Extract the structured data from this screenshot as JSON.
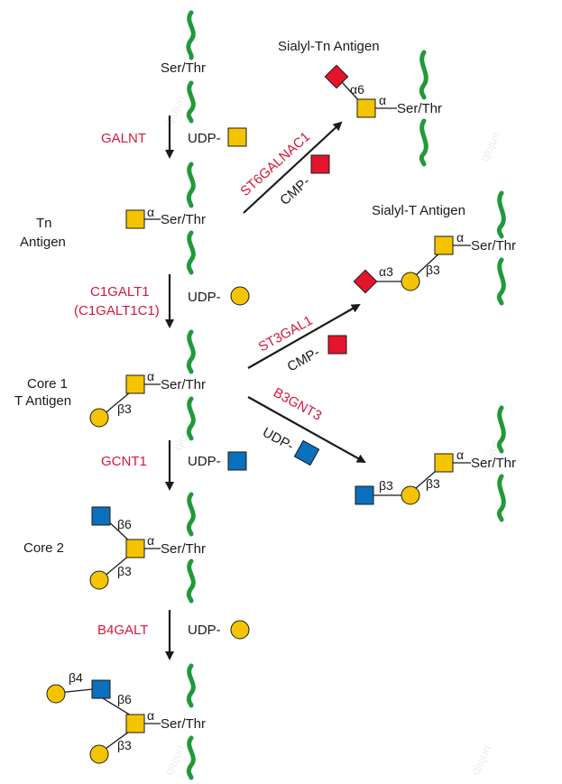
{
  "labels": {
    "ser_thr": "Ser/Thr",
    "udp": "UDP-",
    "cmp": "CMP-",
    "alpha": "α",
    "alpha6": "α6",
    "alpha3": "α3",
    "beta3": "β3",
    "beta4": "β4",
    "beta6": "β6"
  },
  "structures": {
    "tn_antigen": "Tn\nAntigen",
    "tn_line1": "Tn",
    "tn_line2": "Antigen",
    "core1_line1": "Core 1",
    "core1_line2": "T Antigen",
    "core2": "Core 2",
    "sialyl_tn": "Sialyl-Tn Antigen",
    "sialyl_t": "Sialyl-T Antigen"
  },
  "enzymes": {
    "galnt": "GALNT",
    "c1galt1": "C1GALT1",
    "c1galt1c1": "(C1GALT1C1)",
    "gcnt1": "GCNT1",
    "b4galt": "B4GALT",
    "st6galnac1": "ST6GALNAC1",
    "st3gal1": "ST3GAL1",
    "b3gnt3": "B3GNT3"
  },
  "watermark": "qiujun",
  "colors": {
    "enzyme": "#d6183a",
    "galnac_yellow": "#f5c400",
    "glcnac_blue": "#0a6fbd",
    "sialic_red": "#e3142c",
    "peptide_green": "#1f9a3a"
  }
}
